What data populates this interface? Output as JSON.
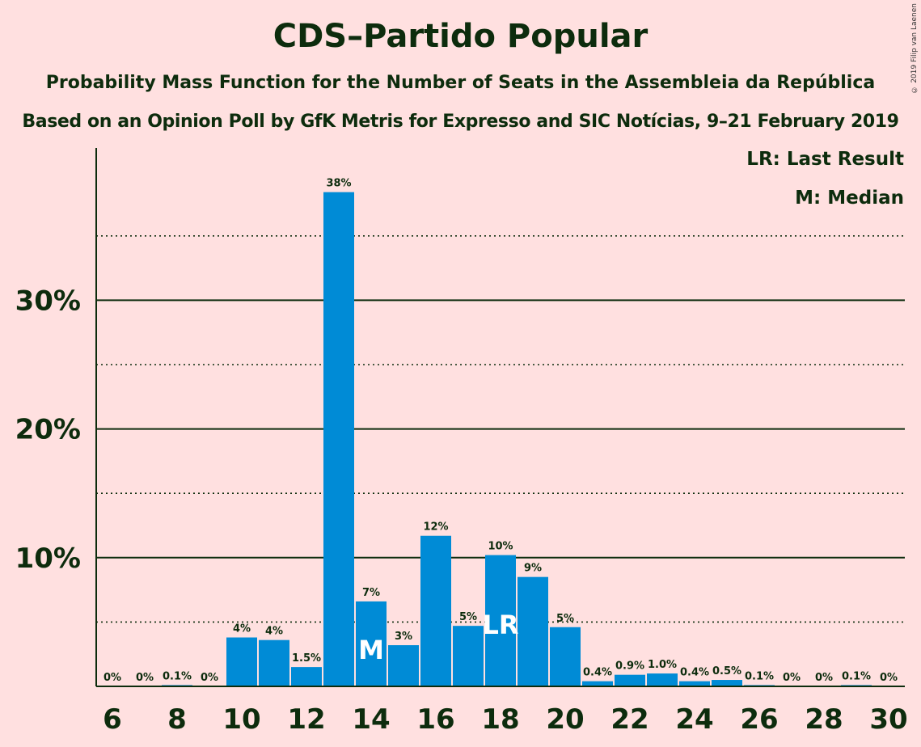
{
  "chart_data": {
    "type": "bar",
    "title": "CDS–Partido Popular",
    "subtitle1": "Probability Mass Function for the Number of Seats in the Assembleia da República",
    "subtitle2": "Based on an Opinion Poll by GfK Metris for Expresso and SIC Notícias, 9–21 February 2019",
    "copyright": "© 2019 Filip van Laenen",
    "legend": {
      "lr": "LR: Last Result",
      "m": "M: Median"
    },
    "x": [
      6,
      7,
      8,
      9,
      10,
      11,
      12,
      13,
      14,
      15,
      16,
      17,
      18,
      19,
      20,
      21,
      22,
      23,
      24,
      25,
      26,
      27,
      28,
      29,
      30
    ],
    "values": [
      0,
      0,
      0.1,
      0,
      3.8,
      3.6,
      1.5,
      38.4,
      6.6,
      3.2,
      11.7,
      4.7,
      10.2,
      8.5,
      4.6,
      0.4,
      0.9,
      1.0,
      0.4,
      0.5,
      0.1,
      0,
      0,
      0.1,
      0
    ],
    "data_labels": [
      "0%",
      "0%",
      "0.1%",
      "0%",
      "4%",
      "4%",
      "1.5%",
      "38%",
      "7%",
      "3%",
      "12%",
      "5%",
      "10%",
      "9%",
      "5%",
      "0.4%",
      "0.9%",
      "1.0%",
      "0.4%",
      "0.5%",
      "0.1%",
      "0%",
      "0%",
      "0.1%",
      "0%"
    ],
    "x_tick_labels": [
      "6",
      "8",
      "10",
      "12",
      "14",
      "16",
      "18",
      "20",
      "22",
      "24",
      "26",
      "28",
      "30"
    ],
    "y_tick_labels": [
      "10%",
      "20%",
      "30%"
    ],
    "ylim": [
      0,
      42
    ],
    "grid_solid": [
      10,
      20,
      30
    ],
    "grid_dotted": [
      5,
      15,
      25,
      35
    ],
    "median_seat": 14,
    "median_marker": "M",
    "last_result_seat": 18,
    "last_result_marker": "LR",
    "bar_color": "#008bd6",
    "legend_position": "top-right"
  }
}
